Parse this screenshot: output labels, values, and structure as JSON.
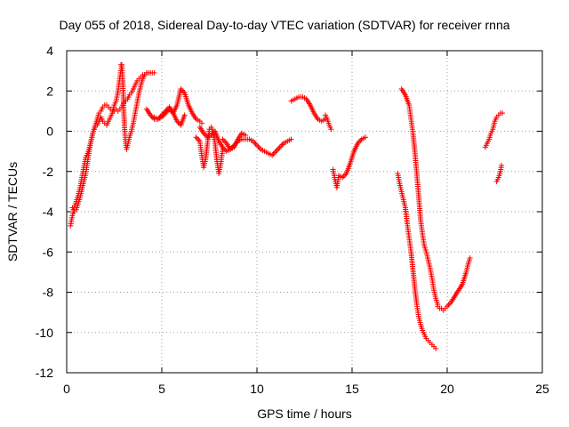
{
  "chart_data": {
    "type": "scatter",
    "title": "Day 055 of 2018, Sidereal Day-to-day VTEC variation (SDTVAR) for receiver rnna",
    "xlabel": "GPS time / hours",
    "ylabel": "SDTVAR / TECUs",
    "xlim": [
      0,
      25
    ],
    "ylim": [
      -12,
      4
    ],
    "xticks": [
      0,
      5,
      10,
      15,
      20,
      25
    ],
    "yticks": [
      4,
      2,
      0,
      -2,
      -4,
      -6,
      -8,
      -10,
      -12
    ],
    "grid": true,
    "marker": "+",
    "color": "#ff0000",
    "series": [
      {
        "x": [
          0.2,
          0.3,
          0.4,
          0.5,
          0.6,
          0.7,
          0.8,
          0.9,
          1.0,
          1.1,
          1.2,
          1.3,
          1.4,
          1.5,
          1.6,
          1.7,
          1.8,
          1.9,
          2.0,
          2.1,
          2.2,
          2.3,
          2.4,
          2.5,
          2.6,
          2.7,
          2.8,
          2.9,
          3.0,
          3.1,
          3.2,
          3.3,
          3.4,
          3.5,
          3.6,
          3.7,
          3.8,
          3.9,
          4.0,
          4.1,
          4.2,
          4.3,
          4.4,
          4.5,
          4.6
        ],
        "y": [
          -4.7,
          -4.2,
          -3.8,
          -3.5,
          -3.2,
          -2.8,
          -2.3,
          -1.8,
          -1.3,
          -1.1,
          -0.8,
          -0.4,
          0.0,
          0.3,
          0.6,
          0.9,
          1.0,
          1.2,
          1.3,
          1.3,
          1.2,
          1.1,
          1.0,
          1.0,
          1.1,
          1.0,
          1.1,
          1.2,
          1.4,
          1.5,
          1.6,
          1.8,
          1.9,
          2.1,
          2.3,
          2.5,
          2.6,
          2.7,
          2.8,
          2.8,
          2.9,
          2.9,
          2.9,
          2.9,
          2.9
        ]
      },
      {
        "x": [
          0.3,
          0.4,
          0.5,
          0.6,
          0.7,
          0.8,
          0.9,
          1.0,
          1.1,
          1.2,
          1.3,
          1.4,
          1.5,
          1.6,
          1.7,
          1.8,
          1.9,
          2.0,
          2.1,
          2.2,
          2.3,
          2.4,
          2.5,
          2.6,
          2.7,
          2.8,
          2.9
        ],
        "y": [
          -3.8,
          -4.0,
          -3.9,
          -3.6,
          -3.3,
          -2.9,
          -2.5,
          -2.1,
          -1.5,
          -0.9,
          -0.4,
          0.0,
          0.2,
          0.3,
          0.5,
          0.7,
          0.5,
          0.4,
          0.3,
          0.5,
          0.7,
          0.9,
          1.3,
          1.5,
          2.0,
          2.7,
          3.3
        ]
      },
      {
        "x": [
          2.85,
          2.9,
          2.95,
          3.0,
          3.05,
          3.1,
          3.15,
          3.2,
          3.3,
          3.4,
          3.5,
          3.6,
          3.7,
          3.8,
          3.9,
          4.0,
          4.1
        ],
        "y": [
          3.3,
          3.2,
          2.5,
          1.0,
          0.0,
          -0.6,
          -0.9,
          -0.7,
          -0.3,
          0.0,
          0.4,
          0.9,
          1.4,
          1.9,
          2.3,
          2.6,
          2.8
        ]
      },
      {
        "x": [
          4.6,
          4.8,
          5.0,
          5.2,
          5.4,
          5.6,
          5.8,
          6.0,
          6.2,
          6.4,
          6.6,
          6.8,
          7.0,
          7.1
        ],
        "y": [
          0.7,
          0.6,
          0.7,
          0.9,
          1.1,
          0.9,
          1.3,
          2.1,
          1.9,
          1.3,
          0.9,
          0.6,
          0.5,
          0.4
        ]
      },
      {
        "x": [
          4.2,
          4.4,
          4.6,
          4.8,
          5.0,
          5.2,
          5.4,
          5.6,
          5.8,
          6.0,
          6.2
        ],
        "y": [
          1.1,
          0.8,
          0.6,
          0.6,
          0.8,
          1.0,
          1.2,
          0.9,
          0.5,
          0.3,
          0.8
        ]
      },
      {
        "x": [
          6.8,
          7.0,
          7.1,
          7.2,
          7.3,
          7.4,
          7.5,
          7.6,
          7.7,
          7.8,
          7.9,
          8.0,
          8.1,
          8.2
        ],
        "y": [
          -0.3,
          -0.5,
          -1.2,
          -1.8,
          -1.4,
          -0.6,
          0.1,
          0.2,
          -0.1,
          -0.6,
          -1.5,
          -2.1,
          -1.6,
          -0.9
        ]
      },
      {
        "x": [
          7.0,
          7.2,
          7.4,
          7.6,
          7.8,
          8.0,
          8.2,
          8.4,
          8.6,
          8.8,
          9.0,
          9.2,
          9.4,
          9.6,
          9.8,
          10.0,
          10.2,
          10.4,
          10.6,
          10.8,
          11.0,
          11.2,
          11.4,
          11.6,
          11.8
        ],
        "y": [
          0.2,
          -0.1,
          -0.3,
          -0.2,
          0.0,
          -0.5,
          -0.8,
          -1.0,
          -0.9,
          -0.7,
          -0.5,
          -0.4,
          -0.4,
          -0.4,
          -0.5,
          -0.7,
          -0.9,
          -1.0,
          -1.1,
          -1.2,
          -1.0,
          -0.8,
          -0.6,
          -0.5,
          -0.4
        ]
      },
      {
        "x": [
          8.2,
          8.4,
          8.6,
          8.8,
          9.0,
          9.2,
          9.4
        ],
        "y": [
          -0.4,
          -0.6,
          -0.9,
          -0.8,
          -0.4,
          -0.1,
          -0.2
        ]
      },
      {
        "x": [
          11.8,
          12.0,
          12.2,
          12.4,
          12.6,
          12.8,
          13.0,
          13.2,
          13.4,
          13.6
        ],
        "y": [
          1.5,
          1.6,
          1.7,
          1.7,
          1.6,
          1.3,
          0.9,
          0.6,
          0.5,
          0.6
        ]
      },
      {
        "x": [
          13.6,
          13.7,
          13.8,
          13.9
        ],
        "y": [
          0.8,
          0.6,
          0.3,
          0.1
        ]
      },
      {
        "x": [
          14.0,
          14.1,
          14.2,
          14.3,
          14.5,
          14.7,
          14.9,
          15.1,
          15.3,
          15.5,
          15.7
        ],
        "y": [
          -1.9,
          -2.4,
          -2.8,
          -2.2,
          -2.3,
          -2.1,
          -1.6,
          -1.0,
          -0.6,
          -0.4,
          -0.3
        ]
      },
      {
        "x": [
          17.6,
          17.8,
          18.0,
          18.1,
          18.2,
          18.3,
          18.4,
          18.5,
          18.6,
          18.7,
          18.8,
          18.9,
          19.0,
          19.1,
          19.2,
          19.3,
          19.4,
          19.5
        ],
        "y": [
          2.1,
          1.8,
          1.3,
          0.6,
          -0.1,
          -1.0,
          -2.1,
          -3.2,
          -4.4,
          -5.1,
          -5.7,
          -6.0,
          -6.4,
          -6.8,
          -7.3,
          -7.9,
          -8.3,
          -8.6
        ]
      },
      {
        "x": [
          19.5,
          19.6,
          19.7,
          19.8,
          19.9,
          20.0,
          20.2,
          20.4,
          20.6,
          20.8,
          21.0,
          21.1,
          21.2
        ],
        "y": [
          -8.7,
          -8.8,
          -8.8,
          -8.9,
          -8.8,
          -8.7,
          -8.5,
          -8.2,
          -7.9,
          -7.6,
          -7.0,
          -6.6,
          -6.3
        ]
      },
      {
        "x": [
          17.4,
          17.5,
          17.6,
          17.7,
          17.8,
          17.9,
          18.0,
          18.1,
          18.2,
          18.3,
          18.4,
          18.5,
          18.6,
          18.7,
          18.8,
          18.9,
          19.0,
          19.1,
          19.2,
          19.3,
          19.4
        ],
        "y": [
          -2.1,
          -2.6,
          -3.0,
          -3.4,
          -3.8,
          -4.6,
          -5.3,
          -6.0,
          -6.9,
          -7.8,
          -8.6,
          -9.2,
          -9.6,
          -9.9,
          -10.1,
          -10.3,
          -10.4,
          -10.5,
          -10.6,
          -10.7,
          -10.8
        ]
      },
      {
        "x": [
          22.0,
          22.1,
          22.2,
          22.3,
          22.4,
          22.5,
          22.6,
          22.7,
          22.8,
          22.9
        ],
        "y": [
          -0.8,
          -0.6,
          -0.4,
          -0.1,
          0.1,
          0.5,
          0.7,
          0.8,
          0.9,
          0.9
        ]
      },
      {
        "x": [
          22.6,
          22.7,
          22.8,
          22.85
        ],
        "y": [
          -2.5,
          -2.3,
          -2.0,
          -1.7
        ]
      }
    ]
  }
}
